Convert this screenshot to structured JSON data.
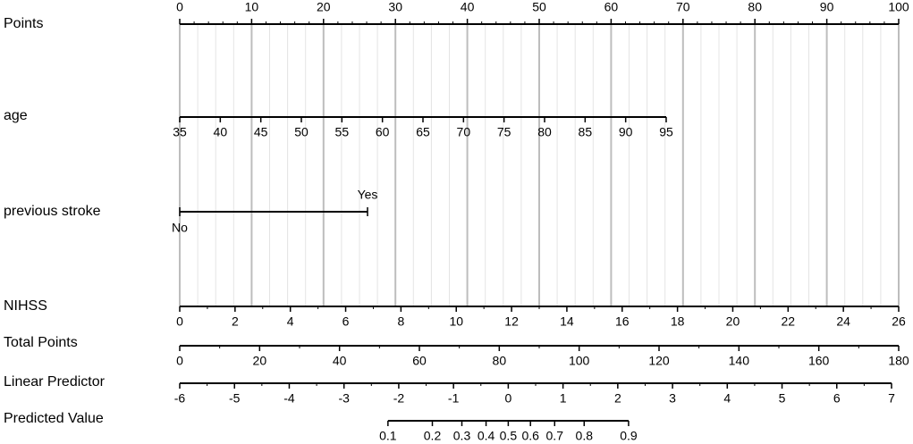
{
  "nomogram": {
    "grid": true,
    "scales": [
      {
        "label": "Points",
        "lim": [
          0,
          100
        ],
        "ticks": [
          0,
          10,
          20,
          30,
          40,
          50,
          60,
          70,
          80,
          90,
          100
        ]
      },
      {
        "label": "age",
        "lim": [
          35,
          95
        ],
        "ticks": [
          35,
          40,
          45,
          50,
          55,
          60,
          65,
          70,
          75,
          80,
          85,
          90,
          95
        ]
      },
      {
        "label": "previous stroke",
        "categories": [
          "No",
          "Yes"
        ]
      },
      {
        "label": "NIHSS",
        "lim": [
          0,
          26
        ],
        "ticks": [
          0,
          2,
          4,
          6,
          8,
          10,
          12,
          14,
          16,
          18,
          20,
          22,
          24,
          26
        ]
      },
      {
        "label": "Total Points",
        "lim": [
          0,
          180
        ],
        "ticks": [
          0,
          20,
          40,
          60,
          80,
          100,
          120,
          140,
          160,
          180
        ]
      },
      {
        "label": "Linear Predictor",
        "lim": [
          -6,
          7
        ],
        "ticks": [
          -6,
          -5,
          -4,
          -3,
          -2,
          -1,
          0,
          1,
          2,
          3,
          4,
          5,
          6,
          7
        ]
      },
      {
        "label": "Predicted Value",
        "lim": [
          0.1,
          0.9
        ],
        "ticks": [
          0.1,
          0.2,
          0.3,
          0.4,
          0.5,
          0.6,
          0.7,
          0.8,
          0.9
        ],
        "scale": "logit"
      }
    ]
  }
}
